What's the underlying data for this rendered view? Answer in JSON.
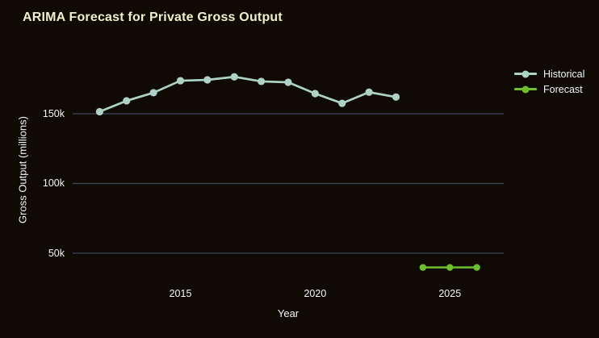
{
  "title": "ARIMA Forecast for Private Gross Output",
  "colors": {
    "background": "#0f0b04",
    "title_text": "#f2eecb",
    "axis_text": "#f2f5fa",
    "gridline": "#3e4358",
    "historical": "#aed3c6",
    "forecast": "#6fbe2e"
  },
  "legend": {
    "items": [
      {
        "label": "Historical",
        "color": "#aed3c6"
      },
      {
        "label": "Forecast",
        "color": "#6fbe2e"
      }
    ]
  },
  "chart_data": {
    "type": "line",
    "title": "ARIMA Forecast for Private Gross Output",
    "xlabel": "Year",
    "ylabel": "Gross Output (millions)",
    "xlim": [
      2011.0,
      2027.0
    ],
    "ylim": [
      32000,
      188200
    ],
    "grid": "horizontal",
    "legend_position": "right",
    "x_ticks": [
      {
        "value": 2015,
        "label": "2015"
      },
      {
        "value": 2020,
        "label": "2020"
      },
      {
        "value": 2025,
        "label": "2025"
      }
    ],
    "y_ticks": [
      {
        "value": 50000,
        "label": "50k"
      },
      {
        "value": 100000,
        "label": "100k"
      },
      {
        "value": 150000,
        "label": "150k"
      }
    ],
    "series": [
      {
        "name": "Historical",
        "color": "#aed3c6",
        "marker_radius": 4.6,
        "line_width": 2.7,
        "x": [
          2012,
          2013,
          2014,
          2015,
          2016,
          2017,
          2018,
          2019,
          2020,
          2021,
          2022,
          2023
        ],
        "y": [
          151500,
          159300,
          165100,
          173700,
          174300,
          176500,
          173200,
          172600,
          164500,
          157500,
          165500,
          162000
        ]
      },
      {
        "name": "Forecast",
        "color": "#6fbe2e",
        "marker_radius": 4.2,
        "line_width": 2.5,
        "x": [
          2024,
          2025,
          2026
        ],
        "y": [
          39800,
          39800,
          39800
        ]
      }
    ]
  }
}
